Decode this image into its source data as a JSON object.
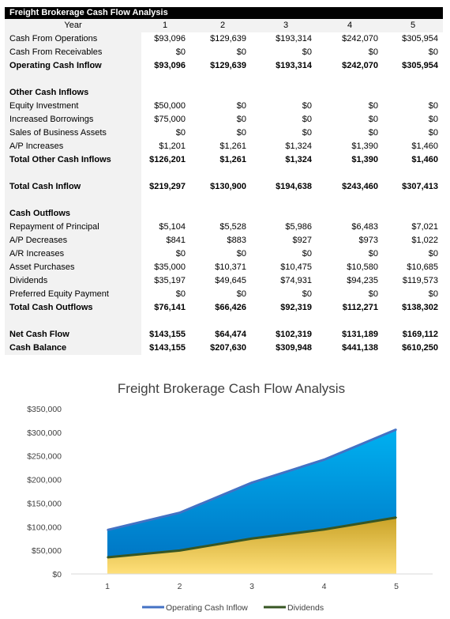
{
  "table": {
    "title": "Freight Brokerage Cash Flow Analysis",
    "year_label": "Year",
    "years": [
      "1",
      "2",
      "3",
      "4",
      "5"
    ],
    "rows": [
      {
        "label": "Cash From Operations",
        "values": [
          "$93,096",
          "$129,639",
          "$193,314",
          "$242,070",
          "$305,954"
        ],
        "bold": false
      },
      {
        "label": "Cash From Receivables",
        "values": [
          "$0",
          "$0",
          "$0",
          "$0",
          "$0"
        ],
        "bold": false
      },
      {
        "label": "Operating Cash Inflow",
        "values": [
          "$93,096",
          "$129,639",
          "$193,314",
          "$242,070",
          "$305,954"
        ],
        "bold": true
      },
      {
        "label": "",
        "values": [
          "",
          "",
          "",
          "",
          ""
        ],
        "bold": false
      },
      {
        "label": "Other Cash Inflows",
        "values": [
          "",
          "",
          "",
          "",
          ""
        ],
        "bold": true
      },
      {
        "label": "Equity Investment",
        "values": [
          "$50,000",
          "$0",
          "$0",
          "$0",
          "$0"
        ],
        "bold": false
      },
      {
        "label": "Increased Borrowings",
        "values": [
          "$75,000",
          "$0",
          "$0",
          "$0",
          "$0"
        ],
        "bold": false
      },
      {
        "label": "Sales of Business Assets",
        "values": [
          "$0",
          "$0",
          "$0",
          "$0",
          "$0"
        ],
        "bold": false
      },
      {
        "label": "A/P Increases",
        "values": [
          "$1,201",
          "$1,261",
          "$1,324",
          "$1,390",
          "$1,460"
        ],
        "bold": false
      },
      {
        "label": "Total Other Cash Inflows",
        "values": [
          "$126,201",
          "$1,261",
          "$1,324",
          "$1,390",
          "$1,460"
        ],
        "bold": true
      },
      {
        "label": "",
        "values": [
          "",
          "",
          "",
          "",
          ""
        ],
        "bold": false
      },
      {
        "label": "Total Cash Inflow",
        "values": [
          "$219,297",
          "$130,900",
          "$194,638",
          "$243,460",
          "$307,413"
        ],
        "bold": true
      },
      {
        "label": "",
        "values": [
          "",
          "",
          "",
          "",
          ""
        ],
        "bold": false
      },
      {
        "label": "Cash Outflows",
        "values": [
          "",
          "",
          "",
          "",
          ""
        ],
        "bold": true
      },
      {
        "label": "Repayment of Principal",
        "values": [
          "$5,104",
          "$5,528",
          "$5,986",
          "$6,483",
          "$7,021"
        ],
        "bold": false
      },
      {
        "label": "A/P Decreases",
        "values": [
          "$841",
          "$883",
          "$927",
          "$973",
          "$1,022"
        ],
        "bold": false
      },
      {
        "label": "A/R Increases",
        "values": [
          "$0",
          "$0",
          "$0",
          "$0",
          "$0"
        ],
        "bold": false
      },
      {
        "label": "Asset Purchases",
        "values": [
          "$35,000",
          "$10,371",
          "$10,475",
          "$10,580",
          "$10,685"
        ],
        "bold": false
      },
      {
        "label": "Dividends",
        "values": [
          "$35,197",
          "$49,645",
          "$74,931",
          "$94,235",
          "$119,573"
        ],
        "bold": false
      },
      {
        "label": "Preferred Equity Payment",
        "values": [
          "$0",
          "$0",
          "$0",
          "$0",
          "$0"
        ],
        "bold": false
      },
      {
        "label": "Total Cash Outflows",
        "values": [
          "$76,141",
          "$66,426",
          "$92,319",
          "$112,271",
          "$138,302"
        ],
        "bold": true
      },
      {
        "label": "",
        "values": [
          "",
          "",
          "",
          "",
          ""
        ],
        "bold": false
      },
      {
        "label": "Net Cash Flow",
        "values": [
          "$143,155",
          "$64,474",
          "$102,319",
          "$131,189",
          "$169,112"
        ],
        "bold": true
      },
      {
        "label": "Cash Balance",
        "values": [
          "$143,155",
          "$207,630",
          "$309,948",
          "$441,138",
          "$610,250"
        ],
        "bold": true
      }
    ]
  },
  "chart_data": {
    "type": "area",
    "title": "Freight Brokerage Cash Flow Analysis",
    "x": [
      1,
      2,
      3,
      4,
      5
    ],
    "series": [
      {
        "name": "Operating Cash Inflow",
        "values": [
          93096,
          129639,
          193314,
          242070,
          305954
        ],
        "color": "#4472c4",
        "fill_top": "#00b0f0",
        "fill_bottom": "#0070c0"
      },
      {
        "name": "Dividends",
        "values": [
          35197,
          49645,
          74931,
          94235,
          119573
        ],
        "color": "#375623",
        "fill_top": "#c9a227",
        "fill_bottom": "#ffe07a"
      }
    ],
    "ylim": [
      0,
      350000
    ],
    "yticks": [
      0,
      50000,
      100000,
      150000,
      200000,
      250000,
      300000,
      350000
    ],
    "ytick_labels": [
      "$0",
      "$50,000",
      "$100,000",
      "$150,000",
      "$200,000",
      "$250,000",
      "$300,000",
      "$350,000"
    ],
    "xtick_labels": [
      "1",
      "2",
      "3",
      "4",
      "5"
    ],
    "legend": "bottom",
    "grid": false
  }
}
